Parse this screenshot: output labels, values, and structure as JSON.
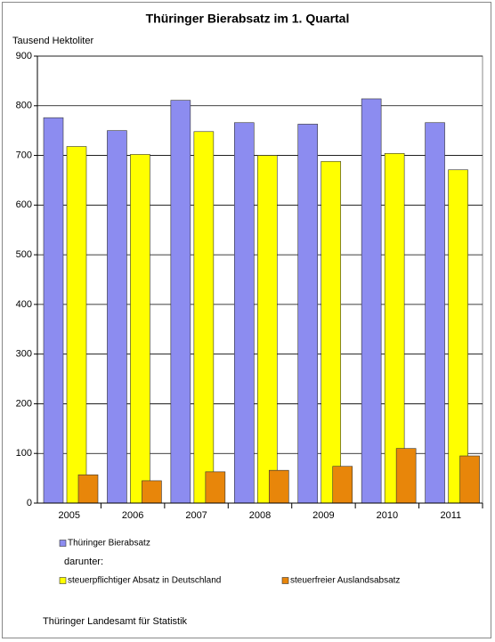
{
  "chart_data": {
    "type": "bar",
    "title": "Thüringer Bierabsatz im 1. Quartal",
    "y_axis_label": "Tausend  Hektoliter",
    "categories": [
      "2005",
      "2006",
      "2007",
      "2008",
      "2009",
      "2010",
      "2011"
    ],
    "series": [
      {
        "name": "Thüringer Bierabsatz",
        "color": "#8c8cf0",
        "values": [
          776,
          750,
          811,
          766,
          763,
          814,
          766
        ]
      },
      {
        "name": "steuerpflichtiger Absatz in Deutschland",
        "color": "#ffff00",
        "values": [
          718,
          702,
          748,
          700,
          688,
          704,
          671
        ]
      },
      {
        "name": "steuerfreier Auslandsabsatz",
        "color": "#e8860a",
        "values": [
          57,
          45,
          63,
          66,
          74,
          110,
          95
        ]
      }
    ],
    "legend_note": "darunter:",
    "source": "Thüringer Landesamt für Statistik",
    "ylim": [
      0,
      900
    ],
    "yticks": [
      0,
      100,
      200,
      300,
      400,
      500,
      600,
      700,
      800,
      900
    ],
    "grid": true
  }
}
